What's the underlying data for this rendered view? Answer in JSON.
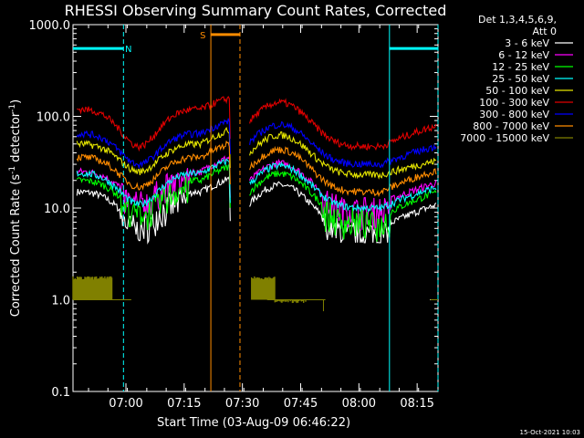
{
  "chart_data": {
    "type": "line",
    "title": "RHESSI Observing Summary Count Rates, Corrected",
    "xlabel": "Start Time (03-Aug-09 06:46:22)",
    "ylabel_parts": [
      "Corrected Count Rate (s",
      "-1",
      " detector",
      "-1",
      ")"
    ],
    "yscale": "log",
    "ylim": [
      0.1,
      1000
    ],
    "xlim_minutes": [
      0,
      94
    ],
    "y_ticks": [
      {
        "v": 1000,
        "label": "1000.0"
      },
      {
        "v": 100,
        "label": "100.0"
      },
      {
        "v": 10,
        "label": "10.0"
      },
      {
        "v": 1,
        "label": "1.0"
      },
      {
        "v": 0.1,
        "label": "0.1"
      }
    ],
    "x_ticks": [
      {
        "v": 13.63,
        "label": "07:00"
      },
      {
        "v": 28.63,
        "label": "07:15"
      },
      {
        "v": 43.63,
        "label": "07:30"
      },
      {
        "v": 58.63,
        "label": "07:45"
      },
      {
        "v": 73.63,
        "label": "08:00"
      },
      {
        "v": 88.63,
        "label": "08:15"
      }
    ],
    "legend_header": [
      "Det 1,3,4,5,6,9,",
      "Att 0"
    ],
    "legend_placement": "right",
    "series": [
      {
        "name": "3 - 6 keV",
        "color": "#ffffff",
        "rise_start": 15,
        "mid1": 7,
        "mid2": 6,
        "rise_end": 11
      },
      {
        "name": "6 - 12 keV",
        "color": "#ff00ff",
        "rise_start": 25,
        "mid1": 13,
        "mid2": 11,
        "rise_end": 19
      },
      {
        "name": "12 - 25 keV",
        "color": "#00ff00",
        "rise_start": 20,
        "mid1": 10,
        "mid2": 8,
        "rise_end": 15
      },
      {
        "name": "25 - 50 keV",
        "color": "#00ffff",
        "rise_start": 24,
        "mid1": 11,
        "mid2": 10,
        "rise_end": 17
      },
      {
        "name": "50 - 100 keV",
        "color": "#e6e600",
        "rise_start": 50,
        "mid1": 25,
        "mid2": 23,
        "rise_end": 33
      },
      {
        "name": "100 - 300 keV",
        "color": "#e00000",
        "rise_start": 120,
        "mid1": 47,
        "mid2": 47,
        "rise_end": 80
      },
      {
        "name": "300 - 800 keV",
        "color": "#0000ff",
        "rise_start": 65,
        "mid1": 30,
        "mid2": 30,
        "rise_end": 48
      },
      {
        "name": "800 - 7000 keV",
        "color": "#ff8c00",
        "rise_start": 36,
        "mid1": 17,
        "mid2": 15,
        "rise_end": 26
      },
      {
        "name": "7000 - 15000 keV",
        "color": "#808000",
        "rise_start": 1,
        "mid1": 1,
        "mid2": 1,
        "rise_end": 1
      }
    ],
    "data_gap_minutes": [
      40.5,
      45.5
    ],
    "event_bars": [
      {
        "label": "N",
        "color": "#00ffff",
        "y": 550,
        "start": 0,
        "end": 13,
        "dashed": [
          13
        ]
      },
      {
        "label": "N",
        "color": "#00ffff",
        "y": 550,
        "start": 81.5,
        "end": 94,
        "solid": [
          81.5
        ],
        "dashed": [
          94
        ]
      },
      {
        "label": "S",
        "color": "#ff8c00",
        "y": 780,
        "start": 35.5,
        "end": 43,
        "solid": [
          35.5
        ],
        "dashed": [
          43
        ]
      }
    ],
    "footer_timestamp": "15-Oct-2021 10:03"
  }
}
